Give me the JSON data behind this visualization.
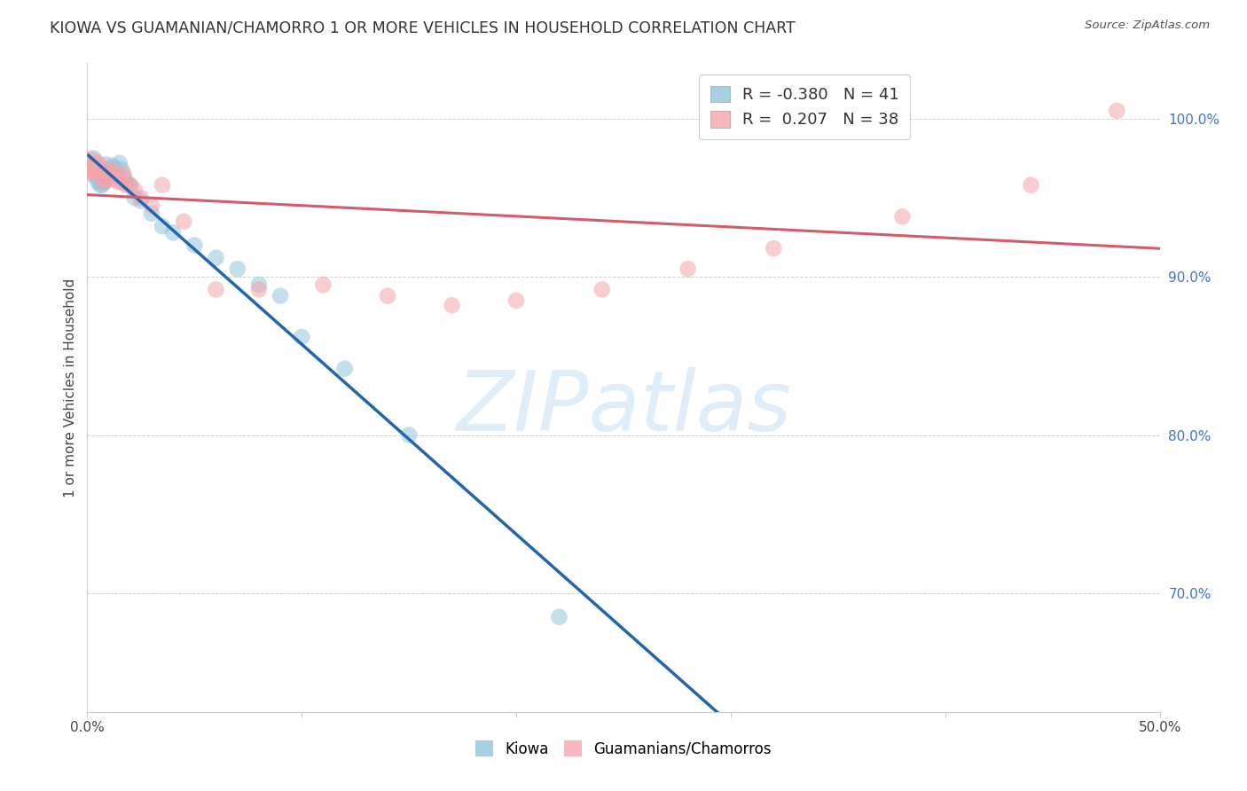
{
  "title": "KIOWA VS GUAMANIAN/CHAMORRO 1 OR MORE VEHICLES IN HOUSEHOLD CORRELATION CHART",
  "source": "Source: ZipAtlas.com",
  "ylabel": "1 or more Vehicles in Household",
  "xlim": [
    0.0,
    0.5
  ],
  "ylim": [
    0.625,
    1.035
  ],
  "xticks": [
    0.0,
    0.1,
    0.2,
    0.3,
    0.4,
    0.5
  ],
  "xtick_labels": [
    "0.0%",
    "",
    "",
    "",
    "",
    "50.0%"
  ],
  "yticks": [
    0.7,
    0.8,
    0.9,
    1.0
  ],
  "ytick_labels": [
    "70.0%",
    "80.0%",
    "90.0%",
    "100.0%"
  ],
  "blue_color": "#92c5de",
  "pink_color": "#f4a4ab",
  "blue_line_color": "#2166ac",
  "pink_line_color": "#d6596a",
  "dashed_line_color": "#92c5de",
  "watermark_text": "ZIPatlas",
  "legend_blue_label": "R = -0.380   N = 41",
  "legend_pink_label": "R =  0.207   N = 38",
  "kiowa_x": [
    0.001,
    0.002,
    0.002,
    0.003,
    0.003,
    0.004,
    0.004,
    0.005,
    0.005,
    0.006,
    0.006,
    0.007,
    0.007,
    0.008,
    0.008,
    0.009,
    0.009,
    0.01,
    0.011,
    0.012,
    0.013,
    0.014,
    0.015,
    0.016,
    0.017,
    0.018,
    0.02,
    0.022,
    0.025,
    0.03,
    0.035,
    0.04,
    0.05,
    0.06,
    0.07,
    0.08,
    0.09,
    0.1,
    0.12,
    0.15,
    0.22
  ],
  "kiowa_y": [
    0.97,
    0.972,
    0.968,
    0.967,
    0.975,
    0.963,
    0.969,
    0.96,
    0.966,
    0.958,
    0.965,
    0.962,
    0.958,
    0.968,
    0.96,
    0.965,
    0.971,
    0.968,
    0.965,
    0.97,
    0.968,
    0.965,
    0.972,
    0.968,
    0.963,
    0.96,
    0.958,
    0.95,
    0.948,
    0.94,
    0.932,
    0.928,
    0.92,
    0.912,
    0.905,
    0.895,
    0.888,
    0.862,
    0.842,
    0.8,
    0.685
  ],
  "guam_x": [
    0.001,
    0.001,
    0.002,
    0.003,
    0.004,
    0.005,
    0.005,
    0.006,
    0.007,
    0.008,
    0.009,
    0.01,
    0.011,
    0.012,
    0.013,
    0.014,
    0.015,
    0.016,
    0.017,
    0.018,
    0.02,
    0.022,
    0.025,
    0.03,
    0.035,
    0.045,
    0.06,
    0.08,
    0.11,
    0.14,
    0.17,
    0.2,
    0.24,
    0.28,
    0.32,
    0.38,
    0.44,
    0.48
  ],
  "guam_y": [
    0.97,
    0.968,
    0.967,
    0.97,
    0.968,
    0.966,
    0.972,
    0.965,
    0.962,
    0.96,
    0.968,
    0.963,
    0.968,
    0.962,
    0.965,
    0.96,
    0.963,
    0.96,
    0.965,
    0.958,
    0.958,
    0.955,
    0.95,
    0.945,
    0.958,
    0.935,
    0.892,
    0.892,
    0.895,
    0.888,
    0.882,
    0.885,
    0.892,
    0.905,
    0.918,
    0.938,
    0.958,
    1.005
  ],
  "guam_size_first": 600,
  "default_size": 180
}
